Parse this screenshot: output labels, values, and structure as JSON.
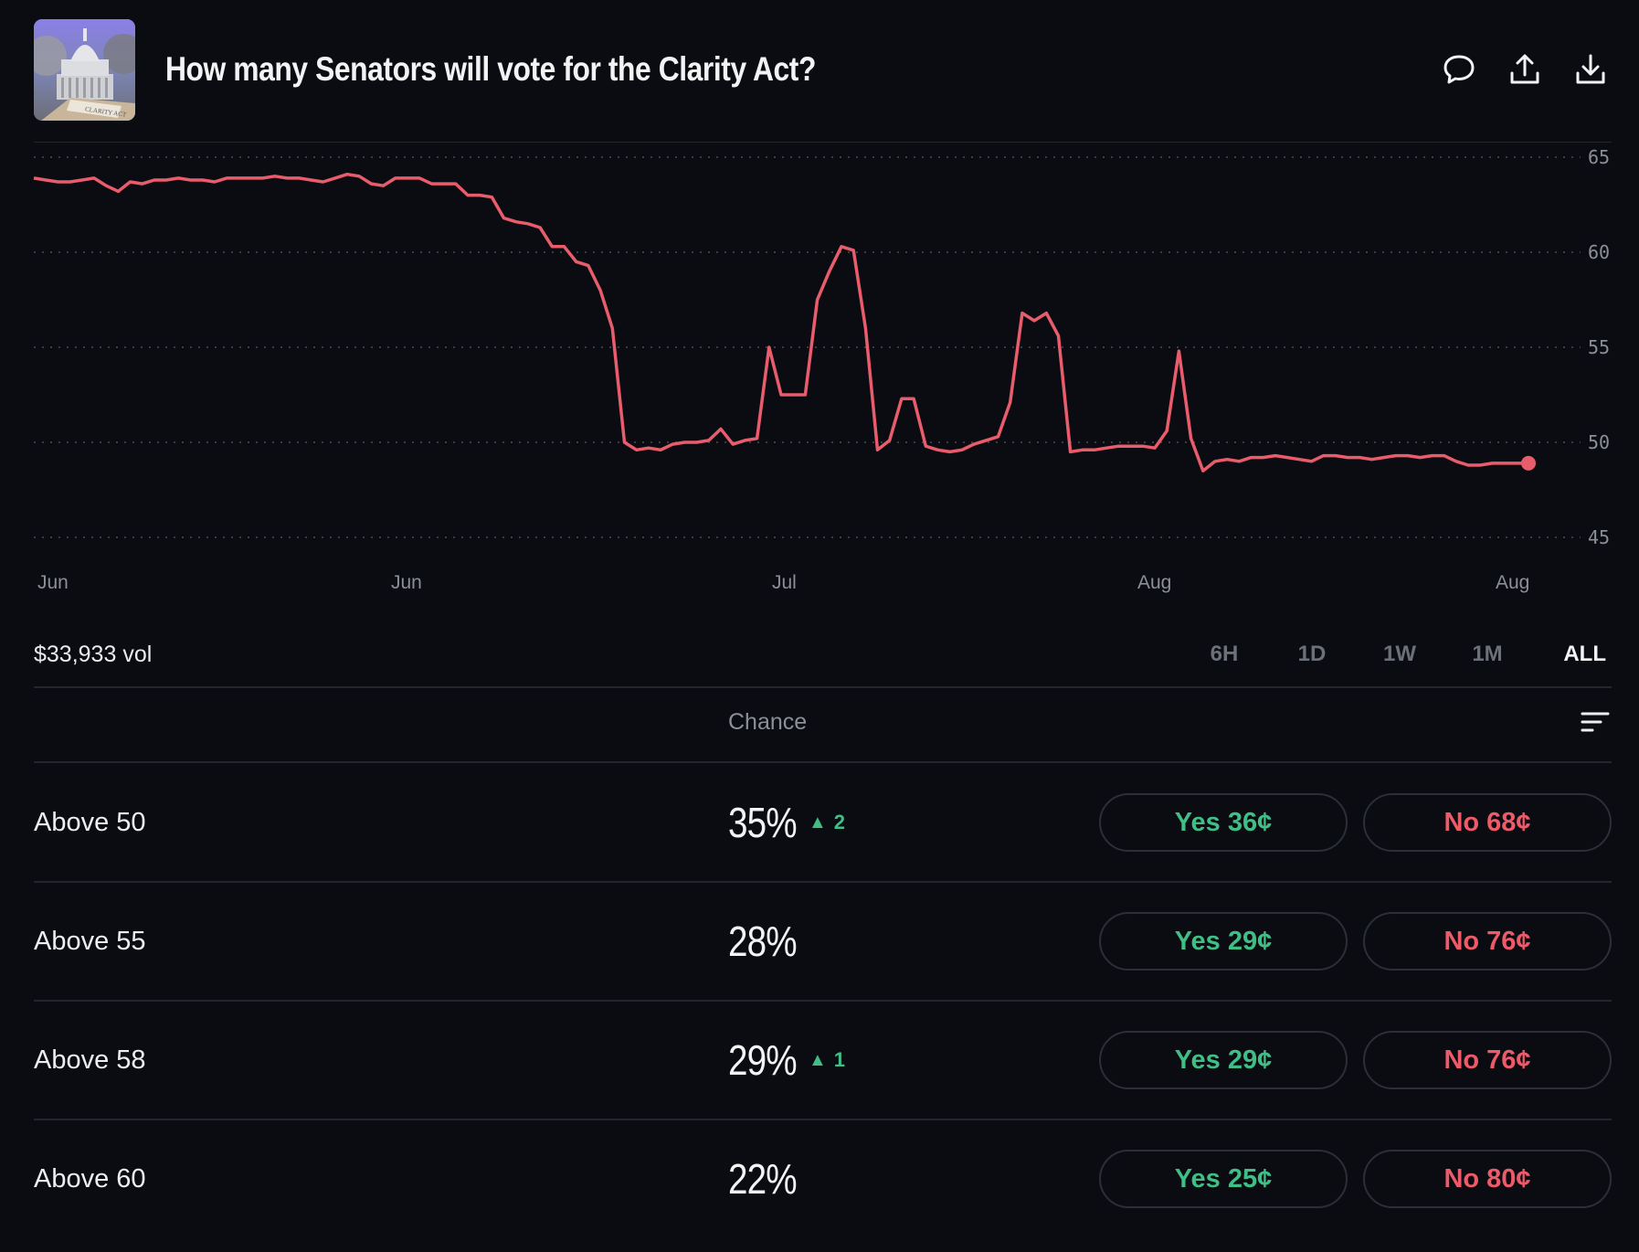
{
  "header": {
    "title": "How many Senators will vote for the Clarity Act?",
    "thumbnail_text": "CLARITY ACT"
  },
  "colors": {
    "background": "#0a0c11",
    "line": "#e95c6c",
    "yes": "#3fbf86",
    "no": "#ee5a69",
    "muted": "#8b8f98"
  },
  "chart_data": {
    "type": "line",
    "title": "",
    "xlabel": "",
    "ylabel": "",
    "ylim": [
      45,
      65
    ],
    "y_ticks": [
      "65",
      "60",
      "55",
      "50",
      "45"
    ],
    "x_ticks": [
      "Jun",
      "Jun",
      "Jul",
      "Aug",
      "Aug"
    ],
    "grid": true,
    "y_axis_side": "right",
    "series": [
      {
        "values": [
          63.9,
          63.8,
          63.7,
          63.7,
          63.8,
          63.9,
          63.5,
          63.2,
          63.7,
          63.6,
          63.8,
          63.8,
          63.9,
          63.8,
          63.8,
          63.7,
          63.9,
          63.9,
          63.9,
          63.9,
          64.0,
          63.9,
          63.9,
          63.8,
          63.7,
          63.9,
          64.1,
          64.0,
          63.6,
          63.5,
          63.9,
          63.9,
          63.9,
          63.6,
          63.6,
          63.6,
          63.0,
          63.0,
          62.9,
          61.8,
          61.6,
          61.5,
          61.3,
          60.3,
          60.3,
          59.5,
          59.3,
          58.0,
          56.0,
          50.0,
          49.6,
          49.7,
          49.6,
          49.9,
          50.0,
          50.0,
          50.1,
          50.7,
          49.9,
          50.1,
          50.2,
          55.0,
          52.5,
          52.5,
          52.5,
          57.5,
          59.0,
          60.3,
          60.1,
          56.0,
          49.6,
          50.1,
          52.3,
          52.3,
          49.8,
          49.6,
          49.5,
          49.6,
          49.9,
          50.1,
          50.3,
          52.1,
          56.8,
          56.4,
          56.8,
          55.6,
          49.5,
          49.6,
          49.6,
          49.7,
          49.8,
          49.8,
          49.8,
          49.7,
          50.6,
          54.8,
          50.2,
          48.5,
          49.0,
          49.1,
          49.0,
          49.2,
          49.2,
          49.3,
          49.2,
          49.1,
          49.0,
          49.3,
          49.3,
          49.2,
          49.2,
          49.1,
          49.2,
          49.3,
          49.3,
          49.2,
          49.3,
          49.3,
          49.0,
          48.8,
          48.8,
          48.9,
          48.9,
          48.9,
          48.9
        ]
      }
    ]
  },
  "volume": {
    "label": "$33,933 vol"
  },
  "ranges": [
    "6H",
    "1D",
    "1W",
    "1M",
    "ALL"
  ],
  "active_range": "ALL",
  "table": {
    "chance_header": "Chance",
    "rows": [
      {
        "label": "Above 50",
        "chance": "35%",
        "delta": "2",
        "yes": "Yes 36¢",
        "no": "No 68¢"
      },
      {
        "label": "Above 55",
        "chance": "28%",
        "delta": "",
        "yes": "Yes 29¢",
        "no": "No 76¢"
      },
      {
        "label": "Above 58",
        "chance": "29%",
        "delta": "1",
        "yes": "Yes 29¢",
        "no": "No 76¢"
      },
      {
        "label": "Above 60",
        "chance": "22%",
        "delta": "",
        "yes": "Yes 25¢",
        "no": "No 80¢"
      }
    ]
  }
}
